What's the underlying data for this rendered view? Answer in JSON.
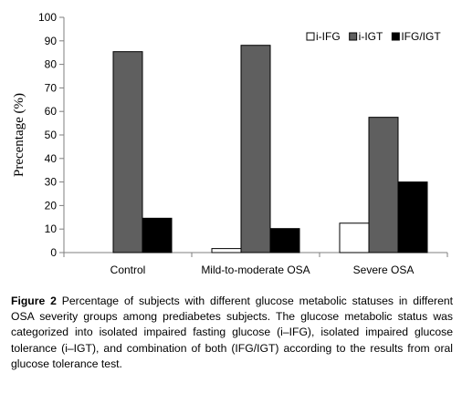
{
  "caption": {
    "label": "Figure 2",
    "text": " Percentage of subjects with different glucose metabolic statuses in different OSA severity groups among prediabetes subjects. The glucose metabolic status was categorized into isolated impaired fasting glucose (i–IFG), isolated impaired glucose tolerance (i–IGT), and combination of both (IFG/IGT) according to the results from oral glucose tolerance test."
  },
  "colors": {
    "i-IFG": "#ffffff",
    "i-IGT": "#5f5f5f",
    "IFG/IGT": "#000000"
  },
  "chart_data": {
    "type": "bar",
    "title": "",
    "xlabel": "",
    "ylabel": "Precentage (%)",
    "ylim": [
      0,
      100
    ],
    "yticks": [
      0,
      10,
      20,
      30,
      40,
      50,
      60,
      70,
      80,
      90,
      100
    ],
    "categories": [
      "Control",
      "Mild-to-moderate OSA",
      "Severe OSA"
    ],
    "series": [
      {
        "name": "i-IFG",
        "values": [
          0,
          1.7,
          12.5
        ]
      },
      {
        "name": "i-IGT",
        "values": [
          85.4,
          88.1,
          57.5
        ]
      },
      {
        "name": "IFG/IGT",
        "values": [
          14.6,
          10.2,
          30.0
        ]
      }
    ],
    "legend": "top-right",
    "grid": false
  }
}
